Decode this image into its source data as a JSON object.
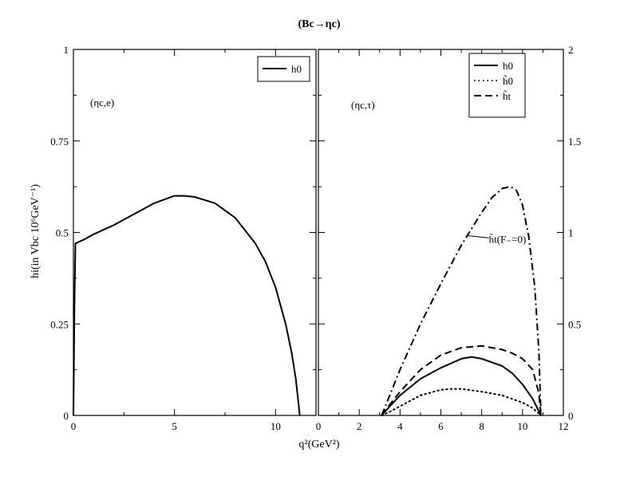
{
  "page": {
    "title": "(Bc→ηc)",
    "xlabel": "q²(GeV²)",
    "ylabel": "hi(in Vbc 10⁶GeV⁻¹)"
  },
  "chart_data": [
    {
      "type": "line",
      "panel": "left",
      "annotation": "(ηc,e)",
      "xlim": [
        0,
        12
      ],
      "ylim": [
        0,
        1
      ],
      "x_ticks": [
        0,
        5,
        10
      ],
      "y_ticks": [
        0,
        0.25,
        0.5,
        0.75,
        1
      ],
      "y_tick_labels": [
        "0",
        "0.25",
        "0.5",
        "0.75",
        "1"
      ],
      "legend_position": "top-right",
      "series": [
        {
          "name": "h0",
          "style": "solid",
          "x": [
            0,
            0.05,
            0.1,
            0.5,
            1,
            2,
            3,
            4,
            5,
            5.5,
            6,
            7,
            8,
            9,
            9.5,
            10,
            10.5,
            10.8,
            11,
            11.1,
            11.2
          ],
          "y": [
            0,
            0.3,
            0.47,
            0.48,
            0.495,
            0.52,
            0.55,
            0.58,
            0.6,
            0.6,
            0.597,
            0.58,
            0.54,
            0.47,
            0.42,
            0.35,
            0.25,
            0.17,
            0.1,
            0.05,
            0
          ]
        }
      ]
    },
    {
      "type": "line",
      "panel": "right",
      "annotation": "(ηc,τ)",
      "curve_label": "h̃t(F₋=0)",
      "xlim": [
        0,
        12
      ],
      "ylim": [
        0,
        2
      ],
      "x_ticks": [
        0,
        2,
        4,
        6,
        8,
        10,
        12
      ],
      "y_ticks": [
        0,
        0.5,
        1,
        1.5,
        2
      ],
      "y_tick_labels": [
        "0",
        "0.5",
        "1",
        "1.5",
        "2"
      ],
      "legend_position": "top-right",
      "series": [
        {
          "name": "h0",
          "style": "solid",
          "x": [
            3.1,
            3.5,
            4,
            5,
            6,
            7,
            7.5,
            8,
            9,
            9.5,
            10,
            10.5,
            10.9
          ],
          "y": [
            0,
            0.05,
            0.11,
            0.2,
            0.26,
            0.31,
            0.32,
            0.31,
            0.27,
            0.23,
            0.17,
            0.09,
            0
          ]
        },
        {
          "name": "h̃0",
          "style": "dotted",
          "x": [
            3.1,
            3.5,
            4,
            5,
            6,
            6.5,
            7,
            8,
            9,
            10,
            10.5,
            10.9
          ],
          "y": [
            0,
            0.02,
            0.05,
            0.11,
            0.14,
            0.145,
            0.145,
            0.13,
            0.11,
            0.07,
            0.04,
            0
          ]
        },
        {
          "name": "h̃t",
          "style": "dashed",
          "x": [
            3.1,
            3.5,
            4,
            5,
            6,
            7,
            8,
            9,
            9.5,
            10,
            10.5,
            10.8,
            10.9
          ],
          "y": [
            0,
            0.06,
            0.13,
            0.25,
            0.33,
            0.37,
            0.38,
            0.36,
            0.34,
            0.31,
            0.25,
            0.12,
            0
          ]
        },
        {
          "name": "h̃t(F₋=0)",
          "style": "dashdot-then-dashed",
          "x": [
            3.1,
            4,
            5,
            6,
            7,
            7.5,
            8,
            8.5,
            9,
            9.4,
            9.7,
            10,
            10.3,
            10.6,
            10.8,
            10.9
          ],
          "y": [
            0,
            0.25,
            0.5,
            0.72,
            0.93,
            1.02,
            1.11,
            1.19,
            1.24,
            1.25,
            1.23,
            1.15,
            0.98,
            0.7,
            0.35,
            0
          ]
        }
      ]
    }
  ]
}
